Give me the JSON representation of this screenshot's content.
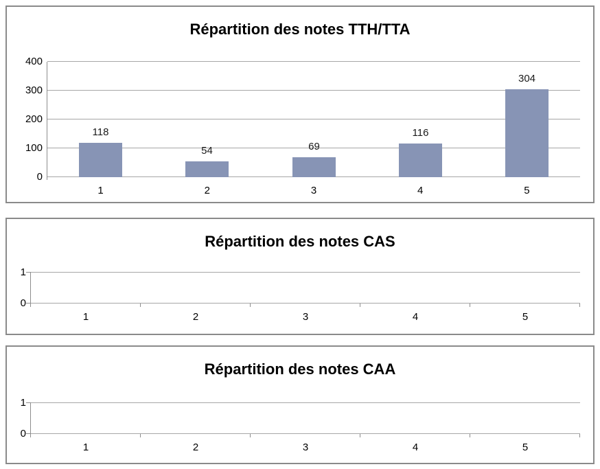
{
  "page": {
    "background": "#ffffff"
  },
  "colors": {
    "bar_fill": "#8794B5",
    "gridline": "#a6a6a6",
    "axis": "#8c8c8c",
    "chart_border": "#8a8a8a",
    "text": "#000000"
  },
  "chart_data": [
    {
      "type": "bar",
      "title": "Répartition des notes TTH/TTA",
      "categories": [
        "1",
        "2",
        "3",
        "4",
        "5"
      ],
      "values": [
        118,
        54,
        69,
        116,
        304
      ],
      "data_labels": [
        "118",
        "54",
        "69",
        "116",
        "304"
      ],
      "y_ticks": [
        0,
        100,
        200,
        300,
        400
      ],
      "ylim": [
        0,
        400
      ],
      "xlabel": "",
      "ylabel": "",
      "grid": true,
      "legend": false
    },
    {
      "type": "bar",
      "title": "Répartition des notes CAS",
      "categories": [
        "1",
        "2",
        "3",
        "4",
        "5"
      ],
      "values": [],
      "data_labels": [],
      "y_ticks": [
        0,
        1
      ],
      "ylim": [
        0,
        1
      ],
      "xlabel": "",
      "ylabel": "",
      "grid": true,
      "legend": false
    },
    {
      "type": "bar",
      "title": "Répartition des notes CAA",
      "categories": [
        "1",
        "2",
        "3",
        "4",
        "5"
      ],
      "values": [],
      "data_labels": [],
      "y_ticks": [
        0,
        1
      ],
      "ylim": [
        0,
        1
      ],
      "xlabel": "",
      "ylabel": "",
      "grid": true,
      "legend": false
    }
  ]
}
